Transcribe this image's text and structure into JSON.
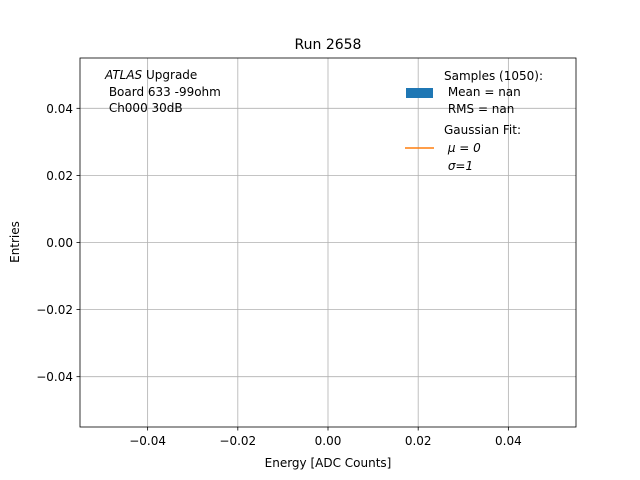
{
  "chart_data": {
    "type": "line",
    "title": "Run 2658",
    "xlabel": "Energy [ADC Counts]",
    "ylabel": "Entries",
    "xlim": [
      -0.055,
      0.055
    ],
    "ylim": [
      -0.055,
      0.055
    ],
    "xticks": [
      -0.04,
      -0.02,
      0.0,
      0.02,
      0.04
    ],
    "yticks": [
      -0.04,
      -0.02,
      0.0,
      0.02,
      0.04
    ],
    "xtick_labels": [
      "−0.04",
      "−0.02",
      "0.00",
      "0.02",
      "0.04"
    ],
    "ytick_labels": [
      "−0.04",
      "−0.02",
      "0.00",
      "0.02",
      "0.04"
    ],
    "grid": true,
    "legend_position": "top-right",
    "annotation": {
      "experiment": "ATLAS",
      "tag": " Upgrade",
      "board": " Board 633 -99ohm",
      "channel": " Ch000 30dB"
    },
    "series": [
      {
        "name": "Samples (1050):",
        "kind": "histogram",
        "color": "#1f77b4",
        "details": [
          " Mean = nan",
          " RMS = nan"
        ],
        "values": []
      },
      {
        "name": "Gaussian Fit:",
        "kind": "line",
        "color": "#ff7f0e",
        "details": [
          " μ = 0",
          " σ=1"
        ],
        "values": []
      }
    ]
  }
}
